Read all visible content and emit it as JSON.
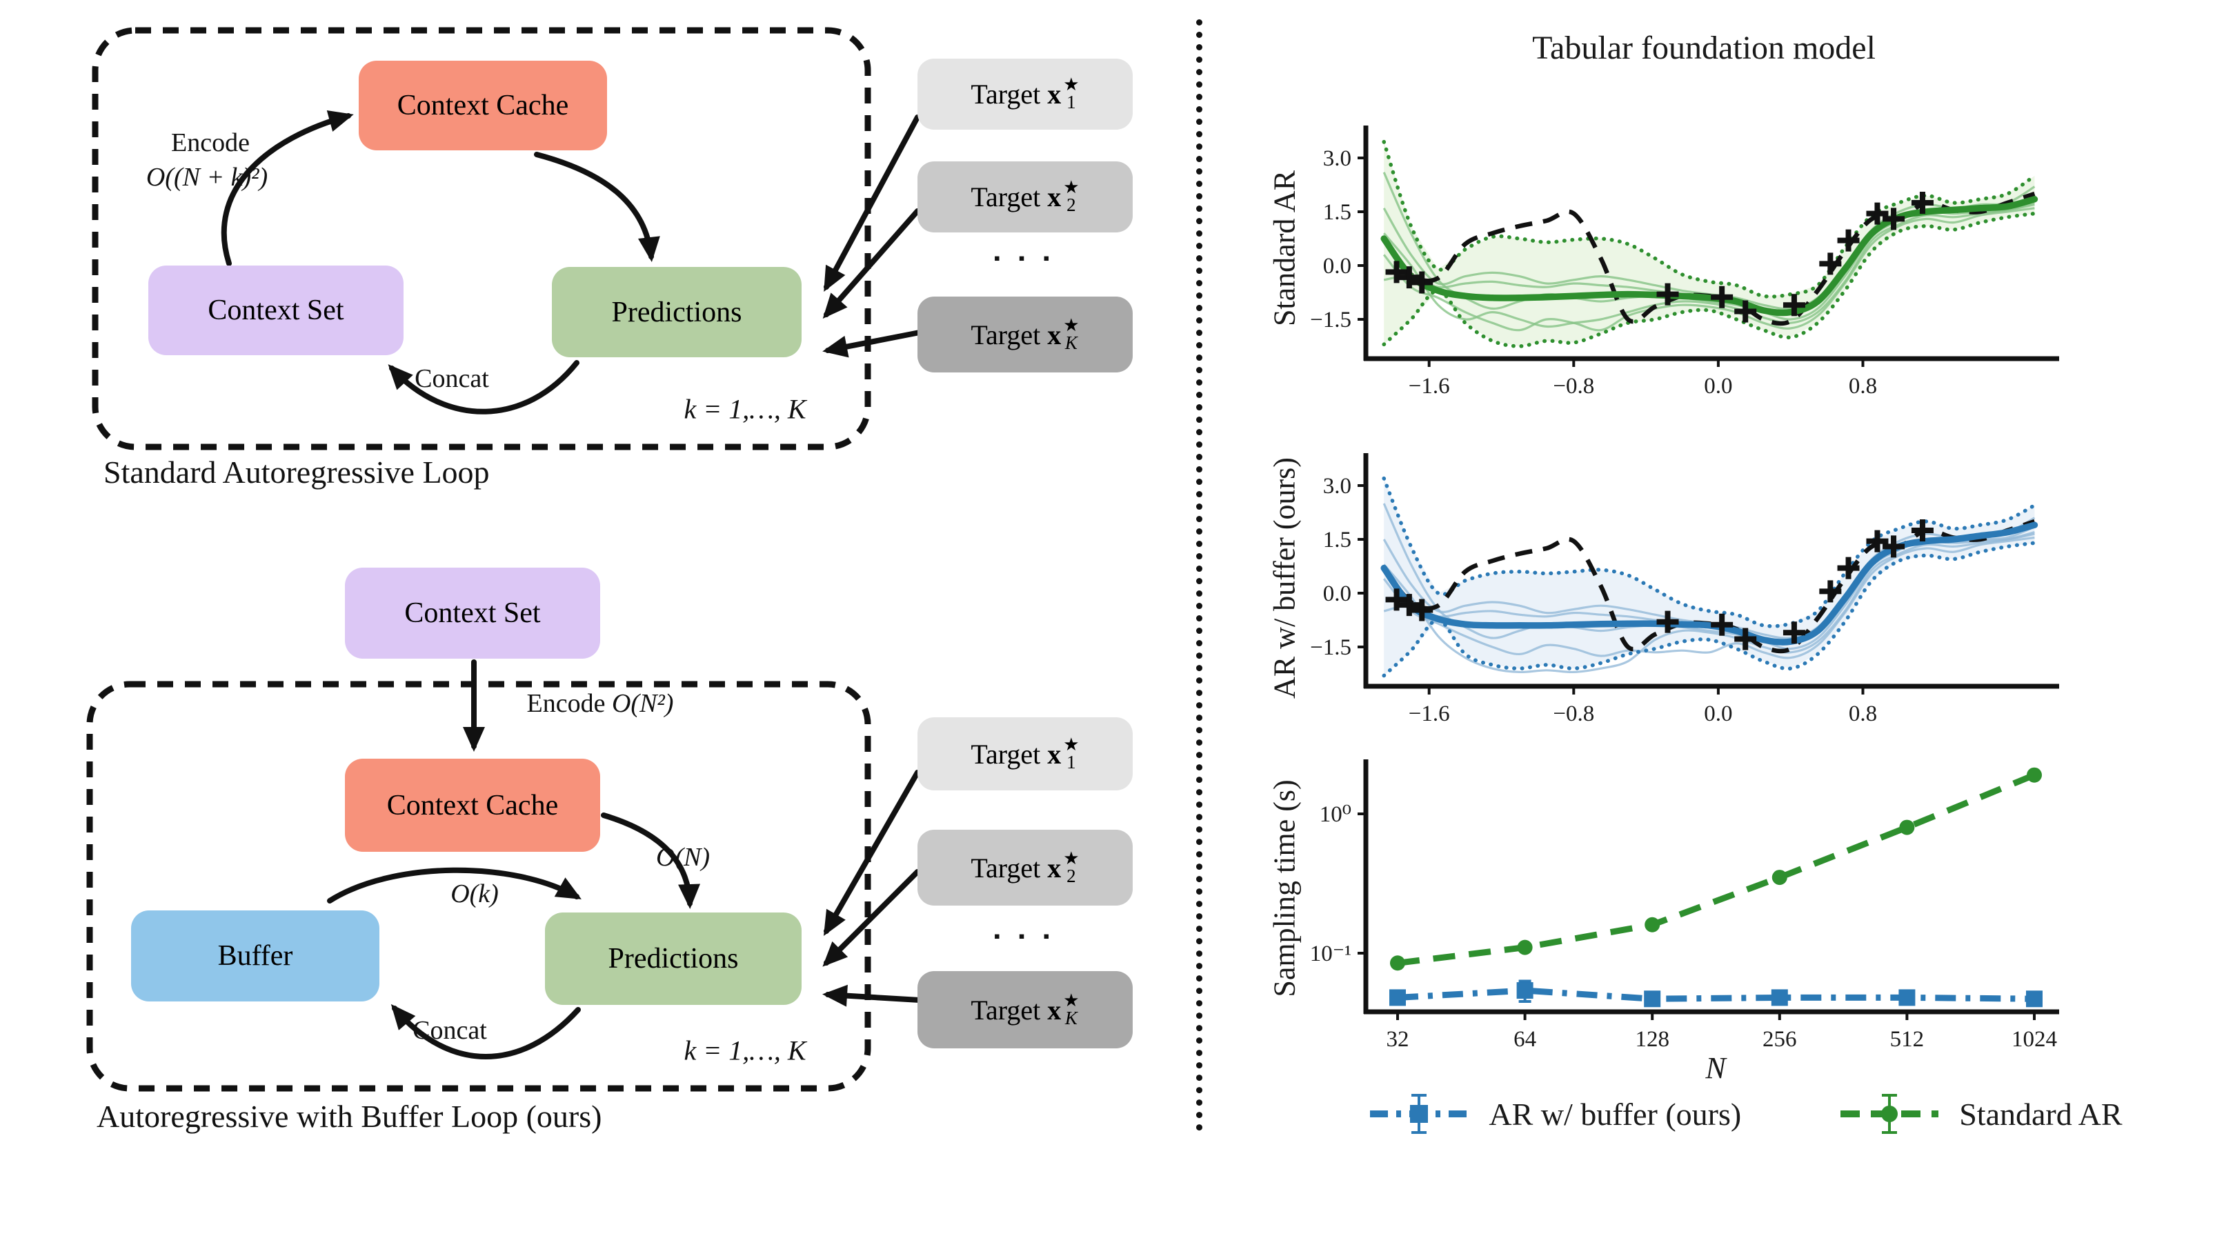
{
  "colors": {
    "salmon": "#f7927b",
    "lavender": "#dcc7f5",
    "green_box": "#b4cfa2",
    "blue_box": "#90c6ea",
    "gray_light": "#e4e4e4",
    "gray_mid": "#c9c9c9",
    "gray_dark": "#a9a9a9",
    "green_main": "#2e8f2e",
    "green_sample": "#86c386",
    "green_fill": "#e9f4e0",
    "blue_main": "#2b79b5",
    "blue_sample": "#93b9d8",
    "blue_fill": "#e7f0f8",
    "ink": "#111111"
  },
  "diagram_top": {
    "boxes": {
      "context_cache": "Context Cache",
      "context_set": "Context Set",
      "predictions": "Predictions"
    },
    "labels": {
      "encode": "Encode",
      "encode_complexity": "O((N + k)²)",
      "concat": "Concat",
      "loop_index": "k = 1,…, K"
    },
    "caption": "Standard Autoregressive Loop"
  },
  "diagram_bottom": {
    "boxes": {
      "context_set": "Context Set",
      "context_cache": "Context Cache",
      "buffer": "Buffer",
      "predictions": "Predictions"
    },
    "labels": {
      "encode": "Encode",
      "encode_complexity": "O(N²)",
      "cache_to_pred": "O(N)",
      "buffer_to_pred": "O(k)",
      "concat": "Concat",
      "loop_index": "k = 1,…, K"
    },
    "caption": "Autoregressive with Buffer Loop (ours)"
  },
  "targets": {
    "label": "Target",
    "var": "x",
    "star": "★",
    "dots": "▪ ▪ ▪",
    "items": [
      {
        "sub": "1",
        "shade": "#e4e4e4",
        "italic_sub": false
      },
      {
        "sub": "2",
        "shade": "#c9c9c9",
        "italic_sub": false
      },
      {
        "sub": "K",
        "shade": "#a9a9a9",
        "italic_sub": true
      }
    ]
  },
  "right_panel": {
    "title": "Tabular foundation model"
  },
  "chart_data": [
    {
      "type": "line",
      "id": "standard_ar_predictions",
      "ylabel": "Standard AR",
      "xlim": [
        -1.95,
        1.85
      ],
      "ylim": [
        -2.6,
        3.9
      ],
      "grid": false,
      "x_ticks": [
        {
          "label": "−1.6",
          "value": -1.6
        },
        {
          "label": "−0.8",
          "value": -0.8
        },
        {
          "label": "0.0",
          "value": 0.0
        },
        {
          "label": "0.8",
          "value": 0.8
        }
      ],
      "y_ticks": [
        {
          "label": "3.0",
          "value": 3.0
        },
        {
          "label": "1.5",
          "value": 1.5
        },
        {
          "label": "0.0",
          "value": 0.0
        },
        {
          "label": "−1.5",
          "value": -1.5
        }
      ],
      "x": [
        -1.85,
        -1.7,
        -1.55,
        -1.4,
        -1.25,
        -1.1,
        -0.95,
        -0.8,
        -0.65,
        -0.5,
        -0.35,
        -0.2,
        -0.05,
        0.1,
        0.25,
        0.4,
        0.55,
        0.7,
        0.85,
        1.0,
        1.15,
        1.3,
        1.45,
        1.6,
        1.75
      ],
      "true_fn": [
        0.7,
        -0.25,
        -0.35,
        0.6,
        0.9,
        1.1,
        1.25,
        1.45,
        0.2,
        -1.5,
        -1.15,
        -0.85,
        -0.85,
        -1.0,
        -1.5,
        -1.55,
        -0.7,
        0.4,
        1.3,
        1.3,
        1.75,
        1.55,
        1.5,
        1.75,
        2.0
      ],
      "mean": [
        0.75,
        -0.3,
        -0.7,
        -0.85,
        -0.9,
        -0.9,
        -0.88,
        -0.85,
        -0.82,
        -0.8,
        -0.82,
        -0.85,
        -0.9,
        -1.0,
        -1.25,
        -1.3,
        -1.0,
        -0.1,
        0.9,
        1.35,
        1.5,
        1.55,
        1.6,
        1.65,
        1.85
      ],
      "band_upper": [
        3.45,
        1.1,
        -0.1,
        0.45,
        0.8,
        0.75,
        0.65,
        0.72,
        0.75,
        0.6,
        0.2,
        -0.25,
        -0.45,
        -0.55,
        -0.85,
        -0.8,
        -0.55,
        0.5,
        1.4,
        1.75,
        1.95,
        1.75,
        1.85,
        2.0,
        2.5
      ],
      "band_lower": [
        -2.2,
        -1.5,
        -0.7,
        -1.6,
        -2.1,
        -2.25,
        -2.1,
        -2.15,
        -1.9,
        -1.6,
        -1.5,
        -1.3,
        -1.25,
        -1.5,
        -1.8,
        -2.0,
        -1.6,
        -0.7,
        0.4,
        0.95,
        1.1,
        1.0,
        1.2,
        1.35,
        1.45
      ],
      "samples": [
        [
          0.3,
          -0.6,
          -0.9,
          -1.3,
          -1.6,
          -1.8,
          -1.5,
          -1.6,
          -1.8,
          -1.4,
          -1.2,
          -1.1,
          -1.15,
          -1.3,
          -1.6,
          -1.75,
          -1.4,
          -0.5,
          0.6,
          1.1,
          1.3,
          1.2,
          1.4,
          1.5,
          1.6
        ],
        [
          1.6,
          0.3,
          -0.5,
          -0.3,
          -0.2,
          -0.3,
          -0.5,
          -0.4,
          -0.3,
          -0.4,
          -0.55,
          -0.7,
          -0.8,
          -0.9,
          -1.1,
          -1.2,
          -0.9,
          0.0,
          1.0,
          1.5,
          1.7,
          1.6,
          1.7,
          1.75,
          2.2
        ],
        [
          2.6,
          0.9,
          -0.4,
          -0.9,
          -1.2,
          -1.0,
          -0.8,
          -0.9,
          -1.0,
          -0.9,
          -0.85,
          -0.9,
          -1.0,
          -1.1,
          -1.3,
          -1.5,
          -1.2,
          -0.3,
          0.8,
          1.25,
          1.55,
          1.5,
          1.55,
          1.6,
          1.9
        ],
        [
          -0.4,
          -0.3,
          -0.6,
          -0.5,
          -0.45,
          -0.55,
          -0.6,
          -0.5,
          -0.55,
          -0.6,
          -0.7,
          -0.8,
          -0.9,
          -1.0,
          -1.2,
          -1.35,
          -1.05,
          -0.2,
          0.85,
          1.3,
          1.5,
          1.45,
          1.5,
          1.55,
          1.7
        ],
        [
          0.9,
          0.0,
          -1.1,
          -1.5,
          -1.3,
          -1.5,
          -1.7,
          -1.6,
          -1.5,
          -1.3,
          -1.1,
          -1.0,
          -1.05,
          -1.2,
          -1.45,
          -1.6,
          -1.3,
          -0.45,
          0.7,
          1.15,
          1.4,
          1.35,
          1.45,
          1.55,
          1.75
        ]
      ],
      "context_points": [
        [
          -1.78,
          -0.18
        ],
        [
          -1.71,
          -0.33
        ],
        [
          -1.64,
          -0.47
        ],
        [
          -0.28,
          -0.8
        ],
        [
          0.02,
          -0.88
        ],
        [
          0.15,
          -1.28
        ],
        [
          0.42,
          -1.1
        ],
        [
          0.62,
          0.05
        ],
        [
          0.72,
          0.7
        ],
        [
          0.88,
          1.45
        ],
        [
          0.97,
          1.3
        ],
        [
          1.13,
          1.75
        ]
      ]
    },
    {
      "type": "line",
      "id": "ar_buffer_predictions",
      "ylabel": "AR w/ buffer (ours)",
      "xlim": [
        -1.95,
        1.85
      ],
      "ylim": [
        -2.6,
        3.9
      ],
      "grid": false,
      "x_ticks": [
        {
          "label": "−1.6",
          "value": -1.6
        },
        {
          "label": "−0.8",
          "value": -0.8
        },
        {
          "label": "0.0",
          "value": 0.0
        },
        {
          "label": "0.8",
          "value": 0.8
        }
      ],
      "y_ticks": [
        {
          "label": "3.0",
          "value": 3.0
        },
        {
          "label": "1.5",
          "value": 1.5
        },
        {
          "label": "0.0",
          "value": 0.0
        },
        {
          "label": "−1.5",
          "value": -1.5
        }
      ],
      "x": [
        -1.85,
        -1.7,
        -1.55,
        -1.4,
        -1.25,
        -1.1,
        -0.95,
        -0.8,
        -0.65,
        -0.5,
        -0.35,
        -0.2,
        -0.05,
        0.1,
        0.25,
        0.4,
        0.55,
        0.7,
        0.85,
        1.0,
        1.15,
        1.3,
        1.45,
        1.6,
        1.75
      ],
      "true_fn": [
        0.7,
        -0.25,
        -0.35,
        0.6,
        0.9,
        1.1,
        1.25,
        1.45,
        0.2,
        -1.5,
        -1.15,
        -0.85,
        -0.85,
        -1.0,
        -1.5,
        -1.55,
        -0.7,
        0.4,
        1.3,
        1.3,
        1.75,
        1.55,
        1.5,
        1.75,
        2.0
      ],
      "mean": [
        0.7,
        -0.35,
        -0.72,
        -0.87,
        -0.9,
        -0.9,
        -0.9,
        -0.88,
        -0.86,
        -0.85,
        -0.85,
        -0.87,
        -0.9,
        -1.05,
        -1.3,
        -1.35,
        -1.05,
        -0.15,
        0.85,
        1.3,
        1.45,
        1.5,
        1.6,
        1.7,
        1.9
      ],
      "band_upper": [
        3.2,
        1.3,
        0.0,
        0.35,
        0.55,
        0.6,
        0.55,
        0.6,
        0.65,
        0.5,
        0.1,
        -0.3,
        -0.5,
        -0.6,
        -0.9,
        -0.85,
        -0.5,
        0.55,
        1.45,
        1.8,
        2.0,
        1.8,
        1.9,
        2.05,
        2.45
      ],
      "band_lower": [
        -2.3,
        -1.6,
        -0.75,
        -1.7,
        -2.0,
        -2.1,
        -2.0,
        -2.1,
        -1.95,
        -1.7,
        -1.55,
        -1.35,
        -1.3,
        -1.55,
        -1.9,
        -2.1,
        -1.7,
        -0.8,
        0.35,
        0.9,
        1.05,
        0.95,
        1.15,
        1.3,
        1.4
      ],
      "samples": [
        [
          0.4,
          -0.5,
          -0.85,
          -1.2,
          -1.5,
          -1.7,
          -1.45,
          -1.55,
          -1.75,
          -1.6,
          -1.65,
          -1.6,
          -1.65,
          -1.4,
          -1.65,
          -1.8,
          -1.45,
          -0.55,
          0.55,
          1.05,
          1.25,
          1.15,
          1.35,
          1.45,
          1.55
        ],
        [
          1.5,
          0.25,
          -0.5,
          -0.35,
          -0.25,
          -0.35,
          -0.55,
          -0.45,
          -0.35,
          -0.45,
          -0.6,
          -0.75,
          -0.85,
          -0.95,
          -1.15,
          -1.25,
          -0.95,
          -0.05,
          0.95,
          1.45,
          1.65,
          1.55,
          1.65,
          1.7,
          2.1
        ],
        [
          2.5,
          0.8,
          -0.45,
          -0.95,
          -1.25,
          -1.05,
          -0.85,
          -0.95,
          -1.05,
          -0.95,
          -0.9,
          -0.95,
          -1.05,
          -1.15,
          -1.35,
          -1.55,
          -1.25,
          -0.35,
          0.75,
          1.2,
          1.5,
          1.45,
          1.5,
          1.55,
          1.85
        ],
        [
          -0.5,
          -0.35,
          -0.65,
          -0.55,
          -0.5,
          -0.6,
          -0.65,
          -0.55,
          -0.6,
          -0.65,
          -0.75,
          -0.85,
          -0.95,
          -1.05,
          -1.25,
          -1.4,
          -1.1,
          -0.25,
          0.8,
          1.25,
          1.45,
          1.4,
          1.45,
          1.5,
          1.65
        ],
        [
          0.8,
          -0.1,
          -1.2,
          -1.8,
          -2.1,
          -2.2,
          -2.15,
          -2.2,
          -2.1,
          -1.9,
          -1.3,
          -1.05,
          -1.1,
          -1.25,
          -1.5,
          -1.65,
          -1.35,
          -0.5,
          0.65,
          1.1,
          1.35,
          1.3,
          1.4,
          1.5,
          1.7
        ]
      ],
      "context_points": [
        [
          -1.78,
          -0.18
        ],
        [
          -1.71,
          -0.33
        ],
        [
          -1.64,
          -0.47
        ],
        [
          -0.28,
          -0.8
        ],
        [
          0.02,
          -0.88
        ],
        [
          0.15,
          -1.28
        ],
        [
          0.42,
          -1.1
        ],
        [
          0.62,
          0.05
        ],
        [
          0.72,
          0.7
        ],
        [
          0.88,
          1.45
        ],
        [
          0.97,
          1.3
        ],
        [
          1.13,
          1.75
        ]
      ]
    },
    {
      "type": "line",
      "id": "sampling_time",
      "ylabel": "Sampling time (s)",
      "xlabel": "N",
      "x_scale": "log2",
      "y_scale": "log10",
      "ylim": [
        0.035,
        2.6
      ],
      "x_ticks": [
        {
          "label": "32",
          "value": 32
        },
        {
          "label": "64",
          "value": 64
        },
        {
          "label": "128",
          "value": 128
        },
        {
          "label": "256",
          "value": 256
        },
        {
          "label": "512",
          "value": 512
        },
        {
          "label": "1024",
          "value": 1024
        }
      ],
      "y_ticks": [
        {
          "label": "10⁰",
          "value": 1.0
        },
        {
          "label": "10⁻¹",
          "value": 0.1
        }
      ],
      "N": [
        32,
        64,
        128,
        256,
        512,
        1024
      ],
      "series": [
        {
          "name": "AR w/ buffer (ours)",
          "marker": "square",
          "linestyle": "dashdot",
          "color_key": "blue_main",
          "values": [
            0.048,
            0.054,
            0.047,
            0.048,
            0.048,
            0.047
          ],
          "yerr": [
            0.002,
            0.009,
            0.002,
            0.002,
            0.002,
            0.002
          ]
        },
        {
          "name": "Standard AR",
          "marker": "circle",
          "linestyle": "dashed",
          "color_key": "green_main",
          "values": [
            0.085,
            0.11,
            0.16,
            0.35,
            0.8,
            1.9
          ],
          "yerr": [
            0.003,
            0.004,
            0.005,
            0.008,
            0.015,
            0.03
          ]
        }
      ]
    }
  ]
}
